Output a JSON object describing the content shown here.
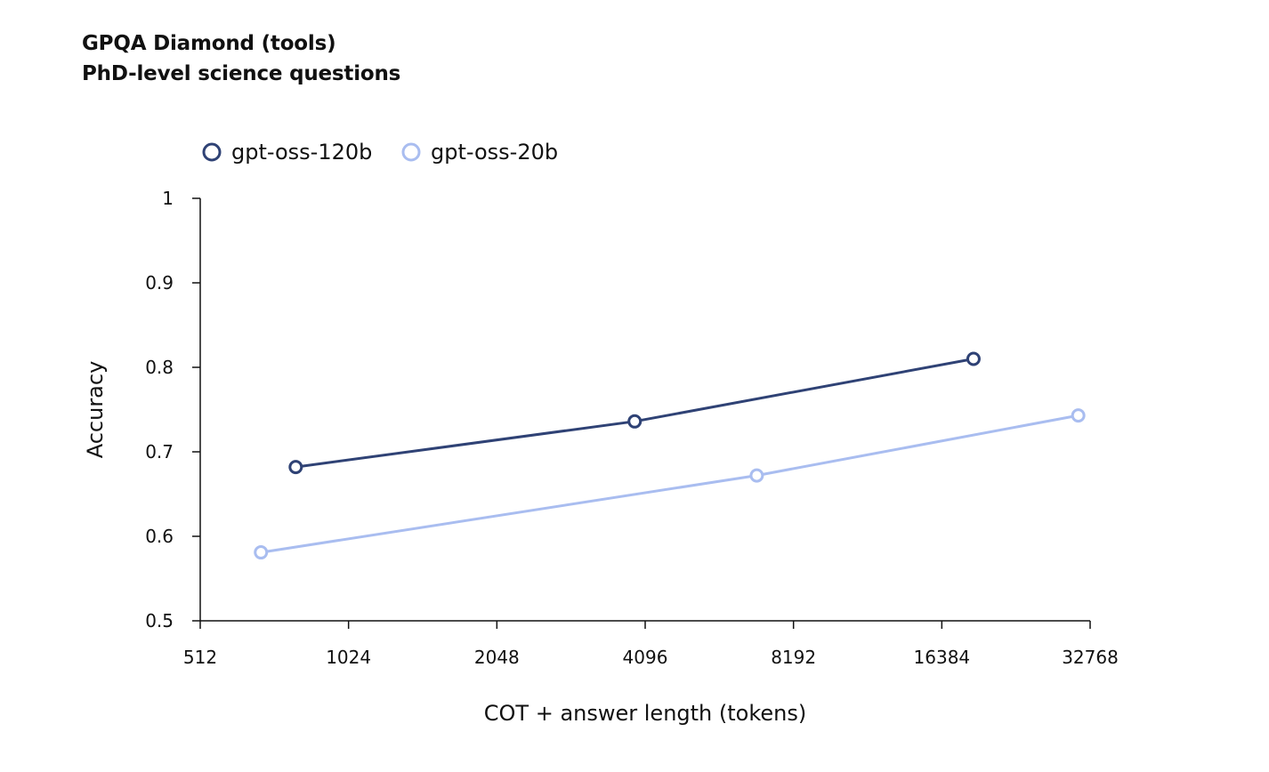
{
  "chart_data": {
    "type": "line",
    "title": "GPQA Diamond (tools)",
    "subtitle": "PhD-level science questions",
    "xlabel": "COT + answer length (tokens)",
    "ylabel": "Accuracy",
    "x_scale": "log2",
    "xlim": [
      512,
      32768
    ],
    "ylim": [
      0.5,
      1
    ],
    "x_ticks": [
      "512",
      "1024",
      "2048",
      "4096",
      "8192",
      "16384",
      "32768"
    ],
    "y_ticks": [
      "0.5",
      "0.6",
      "0.7",
      "0.8",
      "0.9",
      "1"
    ],
    "grid": false,
    "legend_position": "top-left",
    "series": [
      {
        "name": "gpt-oss-120b",
        "color": "#2f4275",
        "points": [
          {
            "x": 800,
            "y": 0.682
          },
          {
            "x": 3900,
            "y": 0.736
          },
          {
            "x": 19000,
            "y": 0.81
          }
        ]
      },
      {
        "name": "gpt-oss-20b",
        "color": "#a9bdf0",
        "points": [
          {
            "x": 680,
            "y": 0.581
          },
          {
            "x": 6900,
            "y": 0.672
          },
          {
            "x": 31000,
            "y": 0.743
          }
        ]
      }
    ]
  }
}
